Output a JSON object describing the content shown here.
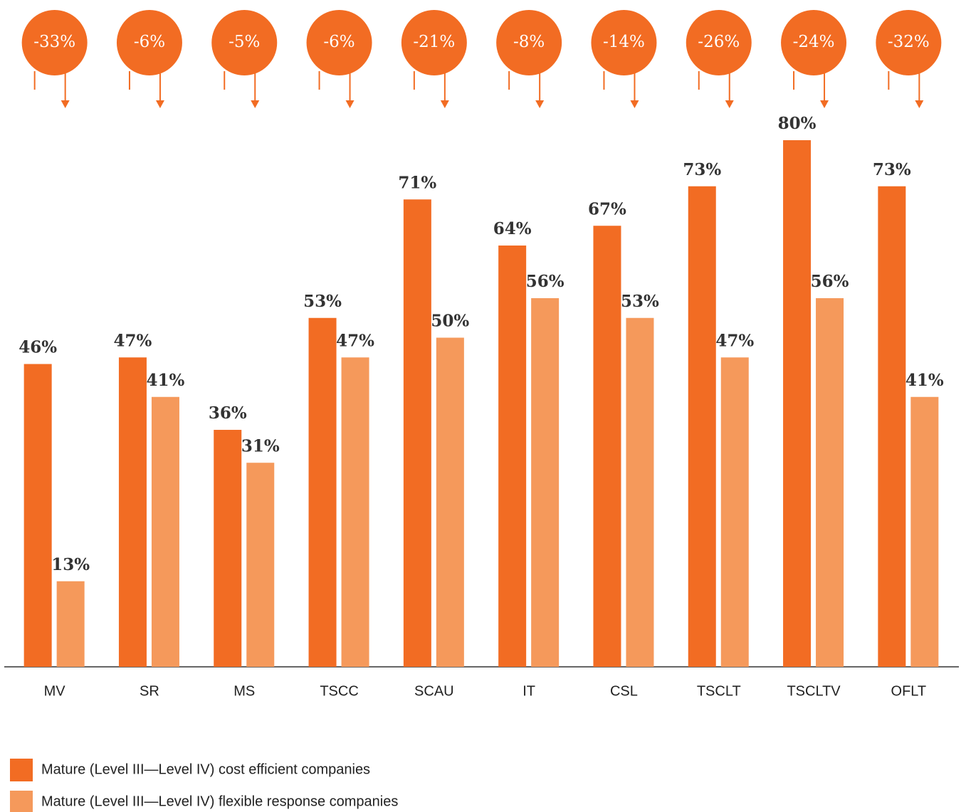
{
  "chart_data": {
    "type": "bar",
    "categories": [
      "MV",
      "SR",
      "MS",
      "TSCC",
      "SCAU",
      "IT",
      "CSL",
      "TSCLT",
      "TSCLTV",
      "OFLT"
    ],
    "series": [
      {
        "name": "Mature (Level III—Level IV) cost efficient companies",
        "color": "#f26c23",
        "values": [
          46,
          47,
          36,
          53,
          71,
          64,
          67,
          73,
          80,
          73
        ],
        "value_labels": [
          "46%",
          "47%",
          "36%",
          "53%",
          "71%",
          "64%",
          "67%",
          "73%",
          "80%",
          "73%"
        ]
      },
      {
        "name": "Mature (Level III—Level IV) flexible response companies",
        "color": "#f5995b",
        "values": [
          13,
          41,
          31,
          47,
          50,
          56,
          53,
          47,
          56,
          41
        ],
        "value_labels": [
          "13%",
          "41%",
          "31%",
          "47%",
          "50%",
          "56%",
          "53%",
          "47%",
          "56%",
          "41%"
        ]
      }
    ],
    "differences": {
      "color": "#f26c23",
      "values": [
        -33,
        -6,
        -5,
        -6,
        -21,
        -8,
        -14,
        -26,
        -24,
        -32
      ],
      "value_labels": [
        "-33%",
        "-6%",
        "-5%",
        "-6%",
        "-21%",
        "-8%",
        "-14%",
        "-26%",
        "-24%",
        "-32%"
      ]
    },
    "ylim": [
      0,
      100
    ]
  }
}
